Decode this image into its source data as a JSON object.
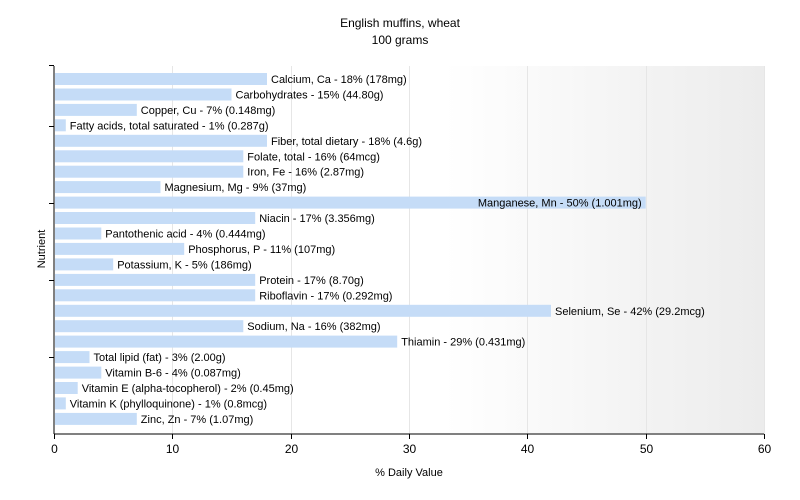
{
  "chart_data": {
    "type": "bar",
    "orientation": "horizontal",
    "title": "English muffins, wheat",
    "subtitle": "100 grams",
    "xlabel": "% Daily Value",
    "ylabel": "Nutrient",
    "xlim": [
      0,
      60
    ],
    "xticks": [
      0,
      10,
      20,
      30,
      40,
      50,
      60
    ],
    "grid": true,
    "bar_color": "#c5dcf7",
    "categories": [
      "Calcium, Ca",
      "Carbohydrates",
      "Copper, Cu",
      "Fatty acids, total saturated",
      "Fiber, total dietary",
      "Folate, total",
      "Iron, Fe",
      "Magnesium, Mg",
      "Manganese, Mn",
      "Niacin",
      "Pantothenic acid",
      "Phosphorus, P",
      "Potassium, K",
      "Protein",
      "Riboflavin",
      "Selenium, Se",
      "Sodium, Na",
      "Thiamin",
      "Total lipid (fat)",
      "Vitamin B-6",
      "Vitamin E (alpha-tocopherol)",
      "Vitamin K (phylloquinone)",
      "Zinc, Zn"
    ],
    "values": [
      18,
      15,
      7,
      1,
      18,
      16,
      16,
      9,
      50,
      17,
      4,
      11,
      5,
      17,
      17,
      42,
      16,
      29,
      3,
      4,
      2,
      1,
      7
    ],
    "labels": [
      "Calcium, Ca - 18% (178mg)",
      "Carbohydrates - 15% (44.80g)",
      "Copper, Cu - 7% (0.148mg)",
      "Fatty acids, total saturated - 1% (0.287g)",
      "Fiber, total dietary - 18% (4.6g)",
      "Folate, total - 16% (64mcg)",
      "Iron, Fe - 16% (2.87mg)",
      "Magnesium, Mg - 9% (37mg)",
      "Manganese, Mn - 50% (1.001mg)",
      "Niacin - 17% (3.356mg)",
      "Pantothenic acid - 4% (0.444mg)",
      "Phosphorus, P - 11% (107mg)",
      "Potassium, K - 5% (186mg)",
      "Protein - 17% (8.70g)",
      "Riboflavin - 17% (0.292mg)",
      "Selenium, Se - 42% (29.2mcg)",
      "Sodium, Na - 16% (382mg)",
      "Thiamin - 29% (0.431mg)",
      "Total lipid (fat) - 3% (2.00g)",
      "Vitamin B-6 - 4% (0.087mg)",
      "Vitamin E (alpha-tocopherol) - 2% (0.45mg)",
      "Vitamin K (phylloquinone) - 1% (0.8mcg)",
      "Zinc, Zn - 7% (1.07mg)"
    ]
  }
}
